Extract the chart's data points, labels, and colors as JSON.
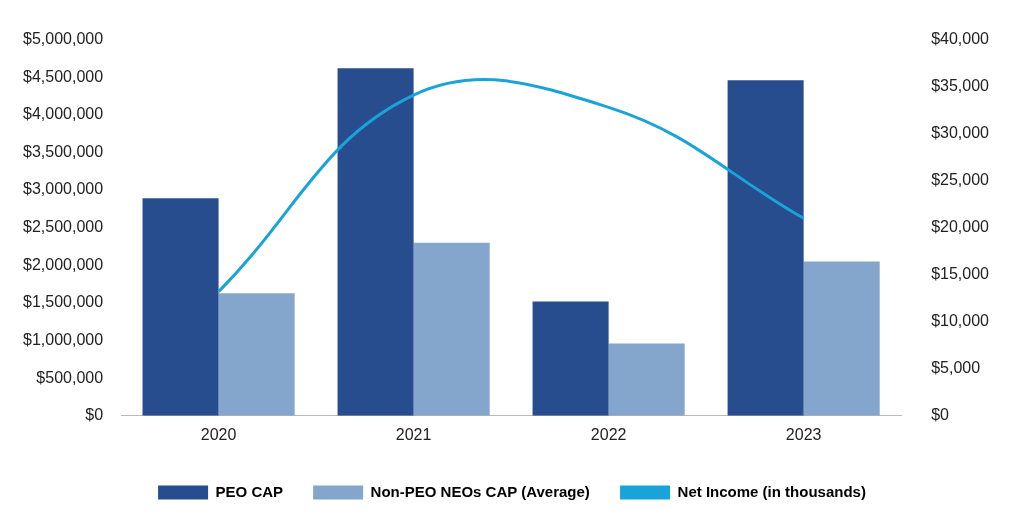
{
  "chart_data": {
    "type": "bar",
    "categories": [
      "2020",
      "2021",
      "2022",
      "2023"
    ],
    "series": [
      {
        "name": "PEO CAP",
        "color": "#284d8e",
        "values": [
          2890000,
          4620000,
          1520000,
          4460000
        ]
      },
      {
        "name": "Non-PEO NEOs CAP (Average)",
        "color": "#85a6cc",
        "values": [
          1630000,
          2300000,
          960000,
          2050000
        ]
      },
      {
        "name": "Net Income (in thousands)",
        "type": "line",
        "axis": "y2",
        "color": "#1aa3d9",
        "values": [
          13200,
          34100,
          32800,
          21000
        ]
      }
    ],
    "ylim": [
      0,
      5000000
    ],
    "yticks": [
      {
        "value": 0,
        "label": "$0"
      },
      {
        "value": 500000,
        "label": "$500,000"
      },
      {
        "value": 1000000,
        "label": "$1,000,000"
      },
      {
        "value": 1500000,
        "label": "$1,500,000"
      },
      {
        "value": 2000000,
        "label": "$2,000,000"
      },
      {
        "value": 2500000,
        "label": "$2,500,000"
      },
      {
        "value": 3000000,
        "label": "$3,000,000"
      },
      {
        "value": 3500000,
        "label": "$3,500,000"
      },
      {
        "value": 4000000,
        "label": "$4,000,000"
      },
      {
        "value": 4500000,
        "label": "$4,500,000"
      },
      {
        "value": 5000000,
        "label": "$5,000,000"
      }
    ],
    "y2lim": [
      0,
      40000
    ],
    "y2ticks": [
      {
        "value": 0,
        "label": "$0"
      },
      {
        "value": 5000,
        "label": "$5,000"
      },
      {
        "value": 10000,
        "label": "$10,000"
      },
      {
        "value": 15000,
        "label": "$15,000"
      },
      {
        "value": 20000,
        "label": "$20,000"
      },
      {
        "value": 25000,
        "label": "$25,000"
      },
      {
        "value": 30000,
        "label": "$30,000"
      },
      {
        "value": 35000,
        "label": "$35,000"
      },
      {
        "value": 40000,
        "label": "$40,000"
      }
    ],
    "grid": false,
    "legend": "bottom",
    "marker": "none"
  }
}
